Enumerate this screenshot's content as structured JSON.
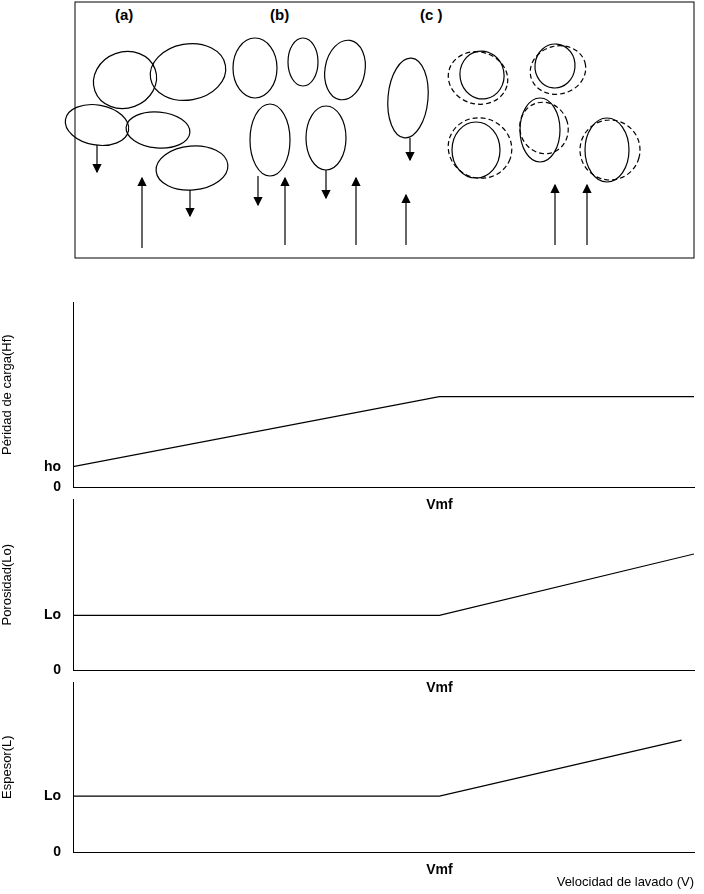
{
  "diagram": {
    "labels": [
      "(a)",
      "(b)",
      "(c )"
    ]
  },
  "chart_data": [
    {
      "type": "line",
      "y_label": "Péridad de carga(Hf)",
      "x": [
        0,
        5.9,
        10
      ],
      "values": [
        1.1,
        4.9,
        4.9
      ],
      "color": "#000000",
      "xlim": [
        0,
        10
      ],
      "ylim": [
        0,
        10
      ],
      "xticks": [
        {
          "value": 5.9,
          "label": "Vmf"
        }
      ],
      "yticks": [
        0,
        {
          "value": 1.1,
          "label": "ho"
        }
      ],
      "grid": false
    },
    {
      "type": "line",
      "y_label": "Porosidad(Lo)",
      "x": [
        0,
        5.9,
        10
      ],
      "values": [
        3.2,
        3.2,
        6.8
      ],
      "color": "#000000",
      "xlim": [
        0,
        10
      ],
      "ylim": [
        0,
        10
      ],
      "xticks": [
        {
          "value": 5.9,
          "label": "Vmf"
        }
      ],
      "yticks": [
        0,
        {
          "value": 3.2,
          "label": "Lo"
        }
      ],
      "grid": false
    },
    {
      "type": "line",
      "y_label": "Espesor(L)",
      "x_label": "Velocidad de lavado (V)",
      "x": [
        0,
        5.9,
        9.8
      ],
      "values": [
        3.3,
        3.3,
        6.6
      ],
      "color": "#000000",
      "xlim": [
        0,
        10
      ],
      "ylim": [
        0,
        10
      ],
      "xticks": [
        {
          "value": 5.9,
          "label": "Vmf"
        }
      ],
      "yticks": [
        0,
        {
          "value": 3.3,
          "label": "Lo"
        }
      ],
      "grid": false
    }
  ]
}
